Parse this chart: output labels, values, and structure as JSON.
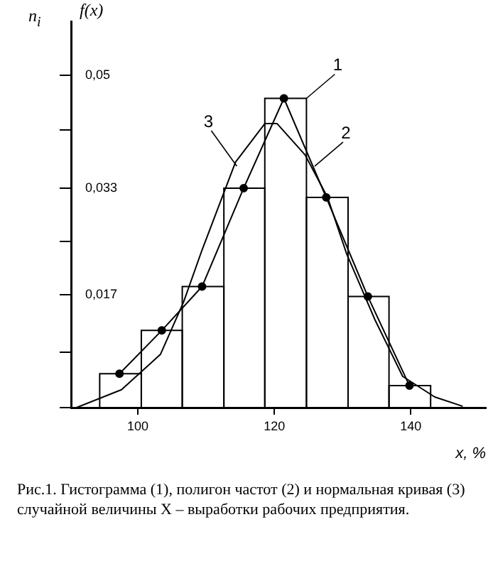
{
  "chart_data": {
    "type": "histogram",
    "xlabel": "x, %",
    "ylabel": "f(x)",
    "xlim": [
      90.2,
      151
    ],
    "xticks": [
      100,
      120,
      140
    ],
    "ylim": [
      0,
      0.058
    ],
    "yticks": [
      {
        "value": 0,
        "label": null
      },
      {
        "value": 0.0083,
        "label": null
      },
      {
        "value": 0.017,
        "label": "0,017"
      },
      {
        "value": 0.025,
        "label": null
      },
      {
        "value": 0.033,
        "label": "0,033"
      },
      {
        "value": 0.0417,
        "label": null
      },
      {
        "value": 0.05,
        "label": "0,05"
      }
    ],
    "grid": false,
    "legend": false,
    "series": [
      {
        "type": "histogram",
        "color": "#000000",
        "bins": [
          94.4,
          100.5,
          106.5,
          112.6,
          118.6,
          124.7,
          130.8,
          136.8,
          142.9
        ],
        "values": [
          0.0051,
          0.0116,
          0.0182,
          0.033,
          0.0465,
          0.0316,
          0.0167,
          0.0033
        ]
      },
      {
        "type": "line",
        "color": "#000000",
        "marker": "circle",
        "x": [
          97.3,
          103.5,
          109.4,
          115.5,
          121.4,
          127.6,
          133.7,
          139.8
        ],
        "values": [
          0.0051,
          0.0116,
          0.0182,
          0.033,
          0.0465,
          0.0316,
          0.0167,
          0.0033
        ]
      },
      {
        "type": "line",
        "color": "#000000",
        "marker": "none",
        "x": [
          91.0,
          97.6,
          103.3,
          106.7,
          109.4,
          114.3,
          118.6,
          120.4,
          124.5,
          127.8,
          130.6,
          134.7,
          138.8,
          143.5,
          147.6
        ],
        "values": [
          0,
          0.0027,
          0.008,
          0.0159,
          0.0237,
          0.0369,
          0.0427,
          0.0427,
          0.038,
          0.0316,
          0.0231,
          0.0133,
          0.0047,
          0.0016,
          0.0002
        ]
      }
    ],
    "annotations": [
      {
        "text": "1",
        "x": 124.7,
        "y": 0.0465
      },
      {
        "text": "2",
        "x": 125.9,
        "y": 0.0363
      },
      {
        "text": "3",
        "x": 114.5,
        "y": 0.0363
      },
      "n$_{i}$",
      "Рис.1. Гистограмма (1), полигон частот (2) и нормальная кривая (3) случайной величины X – выработки рабочих предприятия."
    ]
  }
}
